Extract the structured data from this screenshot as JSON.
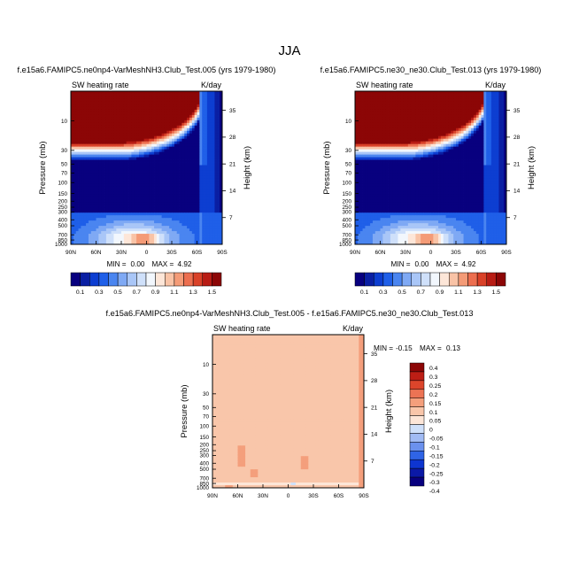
{
  "figure": {
    "title": "JJA"
  },
  "colors": {
    "cbar_top": [
      "#08007f",
      "#0a1fa3",
      "#0d3ed1",
      "#1f5fe8",
      "#4a85f0",
      "#7fa9f4",
      "#a9c6f7",
      "#cfe0fa",
      "#f2f7fd",
      "#fde6d8",
      "#f9c3a6",
      "#f49b77",
      "#ec6e4f",
      "#d94128",
      "#b81c14",
      "#8c0606"
    ],
    "cbar_diff": [
      "#08007f",
      "#0b19a6",
      "#0e35d0",
      "#2f64e6",
      "#6b91ee",
      "#a1bbf4",
      "#cfe0fa",
      "#fde6d8",
      "#f9c6aa",
      "#f49f7c",
      "#ec7354",
      "#dc452b",
      "#bd1e15",
      "#8c0606"
    ]
  },
  "chart_data": [
    {
      "type": "heatmap",
      "panel": "case1",
      "title": "f.e15a6.FAMIPC5.ne0np4-VarMeshNH3.Club_Test.005 (yrs 1979-1980)",
      "left_label": "SW heating rate",
      "right_label": "K/day",
      "xlabel": "",
      "ylabel": "Pressure (mb)",
      "y2label": "Height (km)",
      "x_ticks": [
        "90N",
        "60N",
        "30N",
        "0",
        "30S",
        "60S",
        "90S"
      ],
      "y_ticks": [
        "10",
        "30",
        "50",
        "70",
        "100",
        "150",
        "200",
        "250",
        "300",
        "400",
        "500",
        "700",
        "850",
        "1000"
      ],
      "y2_ticks": [
        "35",
        "28",
        "21",
        "14",
        "7"
      ],
      "min_label": "MIN =",
      "min_value": "0.00",
      "max_label": "MAX =",
      "max_value": "4.92",
      "min": 0.0,
      "max": 4.92
    },
    {
      "type": "heatmap",
      "panel": "case2",
      "title": "f.e15a6.FAMIPC5.ne30_ne30.Club_Test.013 (yrs 1979-1980)",
      "left_label": "SW heating rate",
      "right_label": "K/day",
      "xlabel": "",
      "ylabel": "Pressure (mb)",
      "y2label": "Height (km)",
      "x_ticks": [
        "90N",
        "60N",
        "30N",
        "0",
        "30S",
        "60S",
        "90S"
      ],
      "y_ticks": [
        "10",
        "30",
        "50",
        "70",
        "100",
        "150",
        "200",
        "250",
        "300",
        "400",
        "500",
        "700",
        "850",
        "1000"
      ],
      "y2_ticks": [
        "35",
        "28",
        "21",
        "14",
        "7"
      ],
      "min_label": "MIN =",
      "min_value": "0.00",
      "max_label": "MAX =",
      "max_value": "4.92",
      "min": 0.0,
      "max": 4.92
    },
    {
      "type": "heatmap",
      "panel": "difference",
      "title": "f.e15a6.FAMIPC5.ne0np4-VarMeshNH3.Club_Test.005 - f.e15a6.FAMIPC5.ne30_ne30.Club_Test.013",
      "left_label": "SW heating rate",
      "right_label": "K/day",
      "xlabel": "",
      "ylabel": "Pressure (mb)",
      "y2label": "Height (km)",
      "x_ticks": [
        "90N",
        "60N",
        "30N",
        "0",
        "30S",
        "60S",
        "90S"
      ],
      "y_ticks": [
        "10",
        "30",
        "50",
        "70",
        "100",
        "150",
        "200",
        "250",
        "300",
        "400",
        "500",
        "700",
        "850",
        "1000"
      ],
      "y2_ticks": [
        "35",
        "28",
        "21",
        "14",
        "7"
      ],
      "min_label": "MIN =",
      "min_value": "-0.15",
      "max_label": "MAX =",
      "max_value": "0.13",
      "min": -0.15,
      "max": 0.13
    }
  ],
  "colorbar_top": {
    "labels": [
      "0.1",
      "0.3",
      "0.5",
      "0.7",
      "0.9",
      "1.1",
      "1.3",
      "1.5"
    ]
  },
  "colorbar_diff": {
    "labels": [
      "0.4",
      "0.3",
      "0.25",
      "0.2",
      "0.15",
      "0.1",
      "0.05",
      "0",
      "-0.05",
      "-0.1",
      "-0.15",
      "-0.2",
      "-0.25",
      "-0.3",
      "-0.4"
    ]
  }
}
